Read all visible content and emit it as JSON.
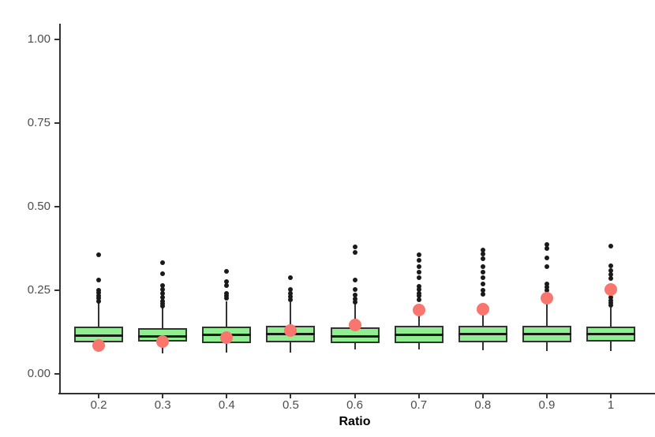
{
  "chart_data": {
    "type": "boxplot",
    "title": "",
    "xlabel": "Ratio",
    "ylabel": "",
    "x_categories": [
      "0.2",
      "0.3",
      "0.4",
      "0.5",
      "0.6",
      "0.7",
      "0.8",
      "0.9",
      "1"
    ],
    "y_ticks": [
      {
        "value": 0.0,
        "label": "0.00"
      },
      {
        "value": 0.25,
        "label": "0.25"
      },
      {
        "value": 0.5,
        "label": "0.50"
      },
      {
        "value": 0.75,
        "label": "0.75"
      },
      {
        "value": 1.0,
        "label": "1.00"
      }
    ],
    "ylim": [
      -0.05,
      1.05
    ],
    "grid": false,
    "legend": "none",
    "boxes": [
      {
        "category": "0.2",
        "whisker_low": 0.065,
        "q1": 0.095,
        "median": 0.115,
        "q3": 0.141,
        "whisker_high": 0.215,
        "outliers": [
          0.218,
          0.226,
          0.234,
          0.242,
          0.25,
          0.281,
          0.356
        ],
        "mean_dot": 0.086
      },
      {
        "category": "0.3",
        "whisker_low": 0.062,
        "q1": 0.096,
        "median": 0.112,
        "q3": 0.137,
        "whisker_high": 0.198,
        "outliers": [
          0.203,
          0.21,
          0.218,
          0.228,
          0.24,
          0.252,
          0.264,
          0.3,
          0.333
        ],
        "mean_dot": 0.096
      },
      {
        "category": "0.4",
        "whisker_low": 0.064,
        "q1": 0.093,
        "median": 0.117,
        "q3": 0.141,
        "whisker_high": 0.217,
        "outliers": [
          0.226,
          0.233,
          0.24,
          0.264,
          0.276,
          0.307
        ],
        "mean_dot": 0.108
      },
      {
        "category": "0.5",
        "whisker_low": 0.064,
        "q1": 0.094,
        "median": 0.118,
        "q3": 0.145,
        "whisker_high": 0.215,
        "outliers": [
          0.222,
          0.23,
          0.24,
          0.252,
          0.288
        ],
        "mean_dot": 0.13
      },
      {
        "category": "0.6",
        "whisker_low": 0.072,
        "q1": 0.093,
        "median": 0.112,
        "q3": 0.139,
        "whisker_high": 0.21,
        "outliers": [
          0.215,
          0.224,
          0.235,
          0.252,
          0.281,
          0.363,
          0.38
        ],
        "mean_dot": 0.146
      },
      {
        "category": "0.7",
        "whisker_low": 0.072,
        "q1": 0.092,
        "median": 0.117,
        "q3": 0.143,
        "whisker_high": 0.175,
        "outliers": [
          0.222,
          0.233,
          0.24,
          0.252,
          0.262,
          0.288,
          0.304,
          0.32,
          0.34,
          0.356
        ],
        "mean_dot": 0.19
      },
      {
        "category": "0.8",
        "whisker_low": 0.07,
        "q1": 0.094,
        "median": 0.119,
        "q3": 0.143,
        "whisker_high": 0.178,
        "outliers": [
          0.238,
          0.25,
          0.269,
          0.288,
          0.304,
          0.32,
          0.344,
          0.359,
          0.37
        ],
        "mean_dot": 0.194
      },
      {
        "category": "0.9",
        "whisker_low": 0.068,
        "q1": 0.094,
        "median": 0.119,
        "q3": 0.145,
        "whisker_high": 0.21,
        "outliers": [
          0.25,
          0.259,
          0.269,
          0.32,
          0.347,
          0.375,
          0.387
        ],
        "mean_dot": 0.226
      },
      {
        "category": "1",
        "whisker_low": 0.068,
        "q1": 0.096,
        "median": 0.119,
        "q3": 0.141,
        "whisker_high": 0.198,
        "outliers": [
          0.205,
          0.212,
          0.22,
          0.229,
          0.285,
          0.297,
          0.31,
          0.323,
          0.382
        ],
        "mean_dot": 0.252
      }
    ],
    "colors": {
      "box_fill": "#90EE90",
      "box_border": "#333333",
      "median_line": "#1a1a1a",
      "outlier": "#1a1a1a",
      "mean_dot": "#F8766D",
      "axis": "#333333",
      "tick_label": "#4d4d4d",
      "axis_title": "#000000",
      "background": "#ffffff"
    }
  }
}
